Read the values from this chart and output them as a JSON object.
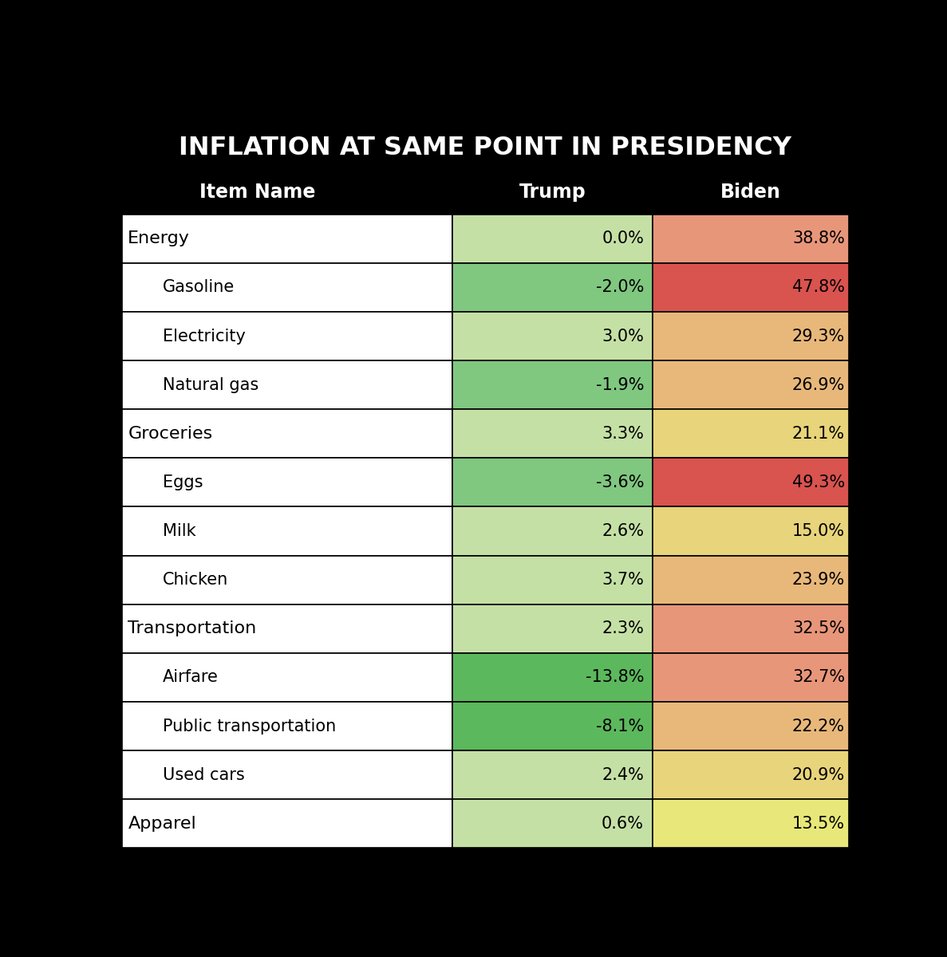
{
  "title": "INFLATION AT SAME POINT IN PRESIDENCY",
  "col_headers": [
    "Item Name",
    "Trump",
    "Biden"
  ],
  "rows": [
    {
      "item": "Energy",
      "trump": 0.0,
      "biden": 38.8,
      "trump_fmt": "0.0%",
      "biden_fmt": "38.8%",
      "indent": false,
      "bold": true
    },
    {
      "item": "Gasoline",
      "trump": -2.0,
      "biden": 47.8,
      "trump_fmt": "-2.0%",
      "biden_fmt": "47.8%",
      "indent": true,
      "bold": false
    },
    {
      "item": "Electricity",
      "trump": 3.0,
      "biden": 29.3,
      "trump_fmt": "3.0%",
      "biden_fmt": "29.3%",
      "indent": true,
      "bold": false
    },
    {
      "item": "Natural gas",
      "trump": -1.9,
      "biden": 26.9,
      "trump_fmt": "-1.9%",
      "biden_fmt": "26.9%",
      "indent": true,
      "bold": false
    },
    {
      "item": "Groceries",
      "trump": 3.3,
      "biden": 21.1,
      "trump_fmt": "3.3%",
      "biden_fmt": "21.1%",
      "indent": false,
      "bold": true
    },
    {
      "item": "Eggs",
      "trump": -3.6,
      "biden": 49.3,
      "trump_fmt": "-3.6%",
      "biden_fmt": "49.3%",
      "indent": true,
      "bold": false
    },
    {
      "item": "Milk",
      "trump": 2.6,
      "biden": 15.0,
      "trump_fmt": "2.6%",
      "biden_fmt": "15.0%",
      "indent": true,
      "bold": false
    },
    {
      "item": "Chicken",
      "trump": 3.7,
      "biden": 23.9,
      "trump_fmt": "3.7%",
      "biden_fmt": "23.9%",
      "indent": true,
      "bold": false
    },
    {
      "item": "Transportation",
      "trump": 2.3,
      "biden": 32.5,
      "trump_fmt": "2.3%",
      "biden_fmt": "32.5%",
      "indent": false,
      "bold": true
    },
    {
      "item": "Airfare",
      "trump": -13.8,
      "biden": 32.7,
      "trump_fmt": "-13.8%",
      "biden_fmt": "32.7%",
      "indent": true,
      "bold": false
    },
    {
      "item": "Public transportation",
      "trump": -8.1,
      "biden": 22.2,
      "trump_fmt": "-8.1%",
      "biden_fmt": "22.2%",
      "indent": true,
      "bold": false
    },
    {
      "item": "Used cars",
      "trump": 2.4,
      "biden": 20.9,
      "trump_fmt": "2.4%",
      "biden_fmt": "20.9%",
      "indent": true,
      "bold": false
    },
    {
      "item": "Apparel",
      "trump": 0.6,
      "biden": 13.5,
      "trump_fmt": "0.6%",
      "biden_fmt": "13.5%",
      "indent": false,
      "bold": true
    }
  ],
  "bg_color": "#000000",
  "title_color": "#ffffff",
  "header_color": "#ffffff",
  "trump_colors": {
    "strong_neg": "#5cb85c",
    "med_neg": "#80c780",
    "light_pos": "#c5e0a5",
    "normal": "#c5e0a5"
  },
  "biden_colors": {
    "very_high": "#d9534f",
    "high": "#e8967a",
    "med": "#e8b87a",
    "low": "#e8d47a",
    "very_low": "#e8e87a"
  }
}
